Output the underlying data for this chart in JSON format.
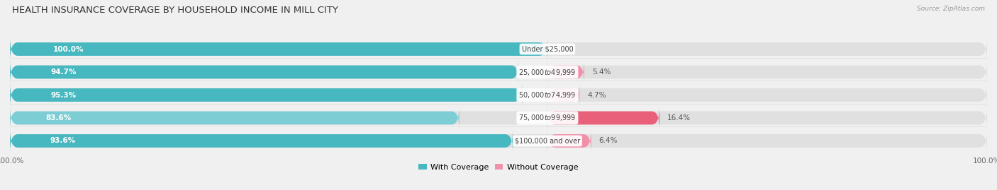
{
  "title": "HEALTH INSURANCE COVERAGE BY HOUSEHOLD INCOME IN MILL CITY",
  "source": "Source: ZipAtlas.com",
  "categories": [
    "Under $25,000",
    "$25,000 to $49,999",
    "$50,000 to $74,999",
    "$75,000 to $99,999",
    "$100,000 and over"
  ],
  "with_coverage": [
    100.0,
    94.7,
    95.3,
    83.6,
    93.6
  ],
  "without_coverage": [
    0.0,
    5.4,
    4.7,
    16.4,
    6.4
  ],
  "color_with": "#47b8c0",
  "color_with_light": "#7dcdd4",
  "color_without": "#f090aa",
  "color_without_dark": "#e8607a",
  "bar_height": 0.58,
  "bg_color": "#f0f0f0",
  "bar_bg_color": "#e0e0e0",
  "title_fontsize": 9.5,
  "label_fontsize": 7.5,
  "cat_fontsize": 7.0,
  "tick_fontsize": 7.5,
  "legend_fontsize": 8.0,
  "total_width": 100.0,
  "split_point": 55.0
}
